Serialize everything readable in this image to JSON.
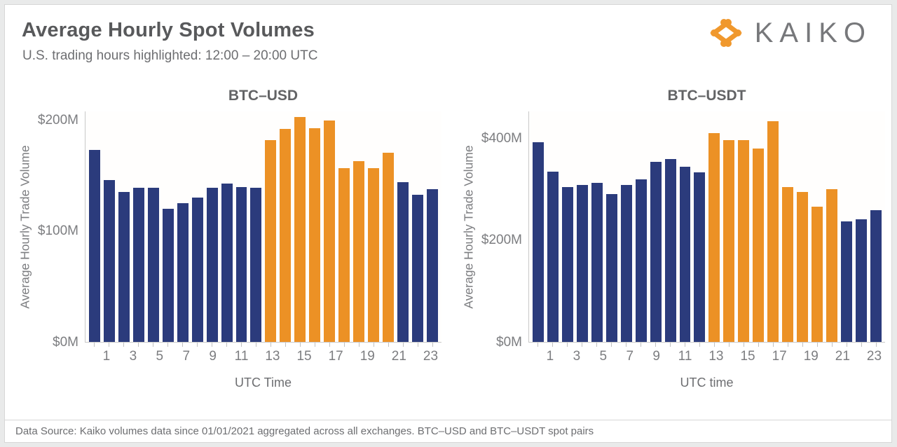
{
  "page": {
    "title": "Average Hourly Spot Volumes",
    "subtitle": "U.S. trading hours highlighted: 12:00 – 20:00 UTC",
    "logo_text": "KAIKO",
    "footer": "Data Source: Kaiko volumes data since 01/01/2021 aggregated across all exchanges. BTC–USD and BTC–USDT spot pairs"
  },
  "colors": {
    "bar_base": "#2B3B7C",
    "bar_highlight": "#EC9125",
    "logo_orange": "#F0982D",
    "axis_line": "#c9c9c9",
    "axis_text": "#7c7d80"
  },
  "chart_data": [
    {
      "type": "bar",
      "title": "BTC–USD",
      "xlabel": "UTC Time",
      "ylabel": "Average Hourly Trade Volume",
      "categories": [
        0,
        1,
        2,
        3,
        4,
        5,
        6,
        7,
        8,
        9,
        10,
        11,
        12,
        13,
        14,
        15,
        16,
        17,
        18,
        19,
        20,
        21,
        22,
        23
      ],
      "values": [
        173,
        146,
        135,
        139,
        139,
        120,
        125,
        130,
        139,
        143,
        140,
        139,
        182,
        192,
        203,
        193,
        200,
        157,
        163,
        157,
        171,
        144,
        133,
        138
      ],
      "units": "USD millions",
      "highlight_hours": [
        12,
        13,
        14,
        15,
        16,
        17,
        18,
        19,
        20
      ],
      "ylim": [
        0,
        208
      ],
      "yticks": [
        {
          "value": 0,
          "label": "$0M"
        },
        {
          "value": 100,
          "label": "$100M"
        },
        {
          "value": 200,
          "label": "$200M"
        }
      ],
      "xtick_labels": [
        "",
        "1",
        "",
        "3",
        "",
        "5",
        "",
        "7",
        "",
        "9",
        "",
        "11",
        "",
        "13",
        "",
        "15",
        "",
        "17",
        "",
        "19",
        "",
        "21",
        "",
        "23"
      ],
      "grid": false,
      "legend": "none"
    },
    {
      "type": "bar",
      "title": "BTC–USDT",
      "xlabel": "UTC time",
      "ylabel": "Average Hourly Trade Volume",
      "categories": [
        0,
        1,
        2,
        3,
        4,
        5,
        6,
        7,
        8,
        9,
        10,
        11,
        12,
        13,
        14,
        15,
        16,
        17,
        18,
        19,
        20,
        21,
        22,
        23
      ],
      "values": [
        393,
        335,
        305,
        308,
        312,
        290,
        309,
        320,
        354,
        359,
        344,
        333,
        410,
        397,
        396,
        380,
        434,
        305,
        295,
        266,
        300,
        237,
        241,
        259
      ],
      "units": "USD millions",
      "highlight_hours": [
        12,
        13,
        14,
        15,
        16,
        17,
        18,
        19,
        20
      ],
      "ylim": [
        0,
        453
      ],
      "yticks": [
        {
          "value": 0,
          "label": "$0M"
        },
        {
          "value": 200,
          "label": "$200M"
        },
        {
          "value": 400,
          "label": "$400M"
        }
      ],
      "xtick_labels": [
        "",
        "1",
        "",
        "3",
        "",
        "5",
        "",
        "7",
        "",
        "9",
        "",
        "11",
        "",
        "13",
        "",
        "15",
        "",
        "17",
        "",
        "19",
        "",
        "21",
        "",
        "23"
      ],
      "grid": false,
      "legend": "none"
    }
  ]
}
